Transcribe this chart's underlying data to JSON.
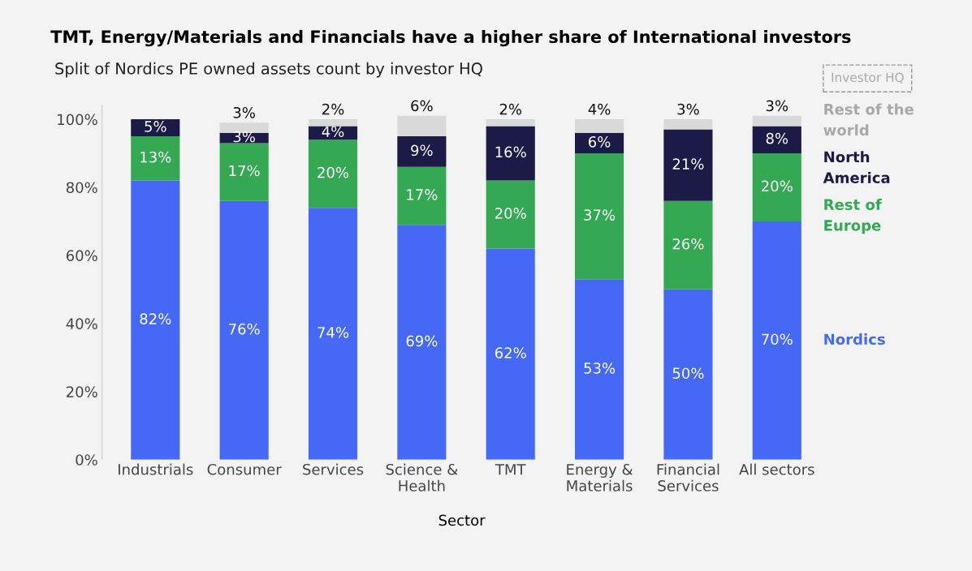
{
  "chart_data": {
    "type": "bar",
    "stacked": true,
    "title": "TMT, Energy/Materials and Financials have a higher share of International investors",
    "subtitle": "Split of Nordics PE owned assets count by investor HQ",
    "xlabel": "Sector",
    "legend_title": "Investor HQ",
    "legend": "right",
    "categories": [
      "Industrials",
      "Consumer",
      "Services",
      "Science &\nHealth",
      "TMT",
      "Energy &\nMaterials",
      "Financial\nServices",
      "All sectors"
    ],
    "series": [
      {
        "name": "Nordics",
        "color": "#4669f5",
        "values": [
          82,
          76,
          74,
          69,
          62,
          53,
          50,
          70
        ],
        "value_labels": [
          "82%",
          "76%",
          "74%",
          "69%",
          "62%",
          "53%",
          "50%",
          "70%"
        ]
      },
      {
        "name": "Rest of\nEurope",
        "color": "#34a853",
        "values": [
          13,
          17,
          20,
          17,
          20,
          37,
          26,
          20
        ],
        "value_labels": [
          "13%",
          "17%",
          "20%",
          "17%",
          "20%",
          "37%",
          "26%",
          "20%"
        ]
      },
      {
        "name": "North\nAmerica",
        "color": "#1c1b48",
        "values": [
          5,
          3,
          4,
          9,
          16,
          6,
          21,
          8
        ],
        "value_labels": [
          "5%",
          "3%",
          "4%",
          "9%",
          "16%",
          "6%",
          "21%",
          "8%"
        ]
      },
      {
        "name": "Rest of the\nworld",
        "color": "#d9d9d9",
        "values": [
          0,
          3,
          2,
          6,
          2,
          4,
          3,
          3
        ],
        "value_labels": [
          null,
          "3%",
          "2%",
          "6%",
          "2%",
          "4%",
          "3%",
          "3%"
        ]
      }
    ],
    "ylim": [
      0,
      104
    ],
    "yticks": [
      {
        "value": 0,
        "label": "0%"
      },
      {
        "value": 20,
        "label": "20%"
      },
      {
        "value": 40,
        "label": "40%"
      },
      {
        "value": 60,
        "label": "60%"
      },
      {
        "value": 80,
        "label": "80%"
      },
      {
        "value": 100,
        "label": "100%"
      }
    ],
    "grid": false
  }
}
